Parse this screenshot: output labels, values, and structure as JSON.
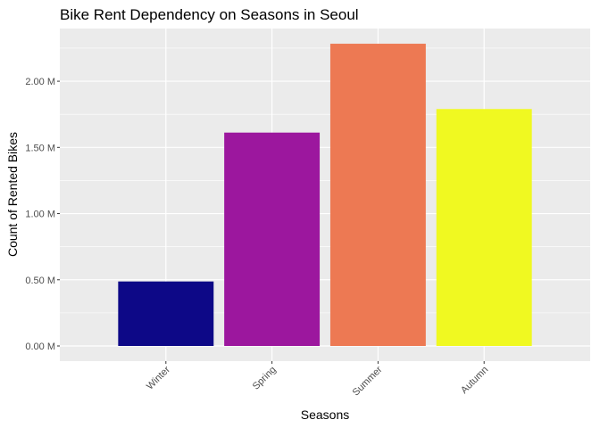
{
  "chart_data": {
    "type": "bar",
    "title": "Bike Rent Dependency on Seasons in Seoul",
    "xlabel": "Seasons",
    "ylabel": "Count of Rented Bikes",
    "categories": [
      "Winter",
      "Spring",
      "Summer",
      "Autumn"
    ],
    "values": [
      487169,
      1611909,
      2283234,
      1790002
    ],
    "colors": [
      "#0d0887",
      "#9c179e",
      "#ed7953",
      "#f0f921"
    ],
    "ylim": [
      0,
      2398000
    ],
    "yticks": [
      0,
      500000,
      1000000,
      1500000,
      2000000
    ],
    "ytick_labels": [
      "0.00 M",
      "0.50 M",
      "1.00 M",
      "1.50 M",
      "2.00 M"
    ],
    "grid": true,
    "panel_background": "#ebebeb",
    "grid_color": "#ffffff",
    "legend": "none"
  }
}
